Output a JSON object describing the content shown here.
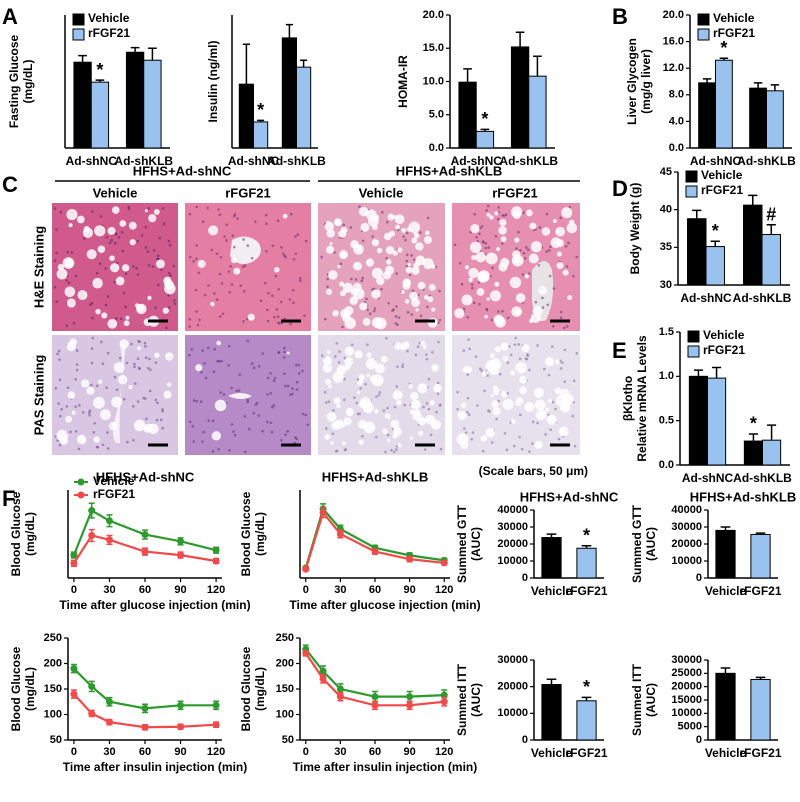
{
  "chart_data": [
    {
      "panel": "A",
      "type": "bar",
      "ylabel": [
        "Fasting Glucose",
        "(mg/dL)"
      ],
      "categories": [
        "Ad-shNC",
        "Ad-shKLB"
      ],
      "series": [
        {
          "name": "Vehicle",
          "color": "#000000",
          "values": [
            129,
            144
          ],
          "errors": [
            10,
            7
          ]
        },
        {
          "name": "rFGF21",
          "color": "#99c2ee",
          "values": [
            99,
            132
          ],
          "errors": [
            3,
            18
          ]
        }
      ],
      "ylim": [
        0,
        200
      ],
      "legend": true,
      "annotations": [
        {
          "text": "*",
          "category": "Ad-shNC",
          "series": "rFGF21"
        }
      ]
    },
    {
      "type": "bar",
      "ylabel": [
        "Insulin (ng/ml)"
      ],
      "categories": [
        "Ad-shNC",
        "Ad-shKLB"
      ],
      "series": [
        {
          "name": "Vehicle",
          "color": "#000000",
          "values": [
            1.2,
            2.07
          ],
          "errors": [
            0.75,
            0.25
          ]
        },
        {
          "name": "rFGF21",
          "color": "#99c2ee",
          "values": [
            0.49,
            1.52
          ],
          "errors": [
            0.03,
            0.13
          ]
        }
      ],
      "ylim": [
        0,
        2.5
      ],
      "legend": false,
      "annotations": [
        {
          "text": "*",
          "category": "Ad-shNC",
          "series": "rFGF21"
        }
      ]
    },
    {
      "type": "bar",
      "ylabel": [
        "HOMA-IR"
      ],
      "categories": [
        "Ad-shNC",
        "Ad-shKLB"
      ],
      "series": [
        {
          "name": "Vehicle",
          "color": "#000000",
          "values": [
            9.9,
            15.2
          ],
          "errors": [
            2,
            2.2
          ]
        },
        {
          "name": "rFGF21",
          "color": "#99c2ee",
          "values": [
            2.5,
            10.8
          ],
          "errors": [
            0.3,
            3
          ]
        }
      ],
      "ylim": [
        0,
        20
      ],
      "yticks": [
        {
          "value": 0,
          "label": "0.0"
        },
        {
          "value": 5,
          "label": "5.0"
        },
        {
          "value": 10,
          "label": "10.0"
        },
        {
          "value": 15,
          "label": "15.0"
        },
        {
          "value": 20,
          "label": "20.0"
        }
      ],
      "legend": false,
      "annotations": [
        {
          "text": "*",
          "category": "Ad-shNC",
          "series": "rFGF21"
        }
      ]
    },
    {
      "panel": "B",
      "type": "bar",
      "ylabel": [
        "Liver Glycogen",
        "(mg/g liver)"
      ],
      "categories": [
        "Ad-shNC",
        "Ad-shKLB"
      ],
      "series": [
        {
          "name": "Vehicle",
          "color": "#000000",
          "values": [
            9.8,
            9.0
          ],
          "errors": [
            0.6,
            0.8
          ]
        },
        {
          "name": "rFGF21",
          "color": "#99c2ee",
          "values": [
            13.2,
            8.6
          ],
          "errors": [
            0.3,
            0.9
          ]
        }
      ],
      "ylim": [
        0,
        20
      ],
      "yticks": [
        {
          "value": 0,
          "label": "0.0"
        },
        {
          "value": 4,
          "label": "4.0"
        },
        {
          "value": 8,
          "label": "8.0"
        },
        {
          "value": 12,
          "label": "12.0"
        },
        {
          "value": 16,
          "label": "16.0"
        },
        {
          "value": 20,
          "label": "20.0"
        }
      ],
      "legend": true,
      "annotations": [
        {
          "text": "*",
          "category": "Ad-shNC",
          "series": "rFGF21"
        }
      ]
    },
    {
      "panel": "D",
      "type": "bar",
      "ylabel": [
        "Body Weight (g)"
      ],
      "categories": [
        "Ad-shNC",
        "Ad-shKLB"
      ],
      "series": [
        {
          "name": "Vehicle",
          "color": "#000000",
          "values": [
            38.8,
            40.6
          ],
          "errors": [
            1.1,
            1.3
          ]
        },
        {
          "name": "rFGF21",
          "color": "#99c2ee",
          "values": [
            35.1,
            36.7
          ],
          "errors": [
            0.7,
            1.3
          ]
        }
      ],
      "ylim": [
        30,
        45
      ],
      "yticks": [
        30,
        35,
        40,
        45
      ],
      "legend": true,
      "annotations": [
        {
          "text": "*",
          "category": "Ad-shNC",
          "series": "rFGF21"
        },
        {
          "text": "#",
          "category": "Ad-shKLB",
          "series": "rFGF21"
        }
      ]
    },
    {
      "panel": "E",
      "type": "bar",
      "ylabel": [
        "βKlotho",
        "Relative mRNA Levels"
      ],
      "categories": [
        "Ad-shNC",
        "Ad-shKLB"
      ],
      "series": [
        {
          "name": "Vehicle",
          "color": "#000000",
          "values": [
            1.0,
            0.27
          ],
          "errors": [
            0.07,
            0.08
          ]
        },
        {
          "name": "rFGF21",
          "color": "#99c2ee",
          "values": [
            0.98,
            0.28
          ],
          "errors": [
            0.12,
            0.17
          ]
        }
      ],
      "ylim": [
        0,
        1.5
      ],
      "yticks": [
        {
          "value": 0,
          "label": "0.0"
        },
        {
          "value": 0.5,
          "label": "0.5"
        },
        {
          "value": 1,
          "label": "1.0"
        },
        {
          "value": 1.5,
          "label": "1.5"
        }
      ],
      "legend": true,
      "annotations": [
        {
          "text": "*",
          "category": "Ad-shKLB",
          "series": "Vehicle"
        }
      ]
    },
    {
      "panel": "F",
      "type": "line",
      "title": "HFHS+Ad-shNC",
      "xlabel": "Time after glucose injection (min)",
      "ylabel": [
        "Blood Glucose",
        "(mg/dL)"
      ],
      "x": [
        0,
        15,
        30,
        60,
        90,
        120
      ],
      "xlim": [
        -5,
        125
      ],
      "xticks": [
        0,
        30,
        60,
        90,
        120
      ],
      "ylim": [
        50,
        350
      ],
      "legend": true,
      "series": [
        {
          "name": "Vehicle",
          "color": "#2e9a2e",
          "values": [
            128,
            280,
            245,
            198,
            175,
            145
          ],
          "errors": [
            10,
            25,
            20,
            15,
            12,
            10
          ]
        },
        {
          "name": "rFGF21",
          "color": "#f04a4a",
          "values": [
            100,
            195,
            180,
            140,
            128,
            108
          ],
          "errors": [
            10,
            20,
            15,
            12,
            10,
            8
          ]
        }
      ]
    },
    {
      "type": "line",
      "title": "HFHS+Ad-shKLB",
      "xlabel": "Time after glucose injection (min)",
      "ylabel": [
        "Blood Glucose",
        "(mg/dL)"
      ],
      "x": [
        0,
        15,
        30,
        60,
        90,
        120
      ],
      "xlim": [
        -5,
        125
      ],
      "xticks": [
        0,
        30,
        60,
        90,
        120
      ],
      "ylim": [
        100,
        450
      ],
      "legend": false,
      "series": [
        {
          "name": "Vehicle",
          "color": "#2e9a2e",
          "values": [
            140,
            375,
            295,
            220,
            190,
            170
          ],
          "errors": [
            5,
            20,
            15,
            10,
            10,
            8
          ]
        },
        {
          "name": "rFGF21",
          "color": "#f04a4a",
          "values": [
            135,
            360,
            275,
            205,
            175,
            160
          ],
          "errors": [
            5,
            20,
            15,
            10,
            10,
            8
          ]
        }
      ]
    },
    {
      "type": "bar",
      "title": "HFHS+Ad-shNC",
      "ylabel": [
        "Summed GTT",
        "(AUC)"
      ],
      "categories": [
        "Vehicle",
        "rFGF21"
      ],
      "values": [
        23800,
        17500
      ],
      "errors": [
        2000,
        1500
      ],
      "colors": [
        "#000000",
        "#99c2ee"
      ],
      "ylim": [
        0,
        40000
      ],
      "yticks": [
        0,
        10000,
        20000,
        30000,
        40000
      ],
      "annotations": [
        {
          "text": "*",
          "category": "rFGF21"
        }
      ]
    },
    {
      "type": "bar",
      "title": "HFHS+Ad-shKLB",
      "ylabel": [
        "Summed GTT",
        "(AUC)"
      ],
      "categories": [
        "Vehicle",
        "rFGF21"
      ],
      "values": [
        28000,
        25600
      ],
      "errors": [
        2000,
        800
      ],
      "colors": [
        "#000000",
        "#99c2ee"
      ],
      "ylim": [
        0,
        40000
      ],
      "yticks": [
        0,
        10000,
        20000,
        30000,
        40000
      ]
    },
    {
      "type": "line",
      "xlabel": "Time after insulin injection (min)",
      "ylabel": [
        "Blood Glucose",
        "(mg/dL)"
      ],
      "x": [
        0,
        15,
        30,
        60,
        90,
        120
      ],
      "xlim": [
        -5,
        125
      ],
      "xticks": [
        0,
        30,
        60,
        90,
        120
      ],
      "ylim": [
        50,
        250
      ],
      "yticks": [
        50,
        100,
        150,
        200,
        250
      ],
      "legend": false,
      "series": [
        {
          "name": "Vehicle",
          "color": "#2e9a2e",
          "values": [
            190,
            155,
            125,
            112,
            118,
            118
          ],
          "errors": [
            8,
            10,
            8,
            8,
            8,
            8
          ]
        },
        {
          "name": "rFGF21",
          "color": "#f04a4a",
          "values": [
            140,
            102,
            85,
            75,
            76,
            80
          ],
          "errors": [
            8,
            6,
            5,
            5,
            5,
            5
          ]
        }
      ]
    },
    {
      "type": "line",
      "xlabel": "Time after insulin injection (min)",
      "ylabel": [
        "Blood Glucose",
        "(mg/dL)"
      ],
      "x": [
        0,
        15,
        30,
        60,
        90,
        120
      ],
      "xlim": [
        -5,
        125
      ],
      "xticks": [
        0,
        30,
        60,
        90,
        120
      ],
      "ylim": [
        50,
        250
      ],
      "yticks": [
        50,
        100,
        150,
        200,
        250
      ],
      "legend": false,
      "series": [
        {
          "name": "Vehicle",
          "color": "#2e9a2e",
          "values": [
            228,
            185,
            150,
            135,
            135,
            138
          ],
          "errors": [
            8,
            10,
            10,
            10,
            10,
            10
          ]
        },
        {
          "name": "rFGF21",
          "color": "#f04a4a",
          "values": [
            220,
            170,
            135,
            118,
            118,
            125
          ],
          "errors": [
            5,
            8,
            8,
            8,
            8,
            8
          ]
        }
      ]
    },
    {
      "type": "bar",
      "ylabel": [
        "Summed ITT",
        "(AUC)"
      ],
      "categories": [
        "Vehicle",
        "rFGF21"
      ],
      "values": [
        20800,
        14700
      ],
      "errors": [
        2000,
        1300
      ],
      "colors": [
        "#000000",
        "#99c2ee"
      ],
      "ylim": [
        0,
        30000
      ],
      "yticks": [
        0,
        10000,
        20000,
        30000
      ],
      "annotations": [
        {
          "text": "*",
          "category": "rFGF21"
        }
      ]
    },
    {
      "type": "bar",
      "ylabel": [
        "Summed ITT",
        "(AUC)"
      ],
      "categories": [
        "Vehicle",
        "rFGF21"
      ],
      "values": [
        25000,
        22700
      ],
      "errors": [
        2000,
        800
      ],
      "colors": [
        "#000000",
        "#99c2ee"
      ],
      "ylim": [
        0,
        30000
      ],
      "yticks": [
        0,
        5000,
        10000,
        15000,
        20000,
        25000,
        30000
      ]
    }
  ],
  "panel_c": {
    "panel": "C",
    "groups": [
      "HFHS+Ad-shNC",
      "HFHS+Ad-shKLB"
    ],
    "columns": [
      "Vehicle",
      "rFGF21",
      "Vehicle",
      "rFGF21"
    ],
    "rows": [
      "H&E Staining",
      "PAS Staining"
    ],
    "note": "(Scale bars, 50 μm)"
  }
}
